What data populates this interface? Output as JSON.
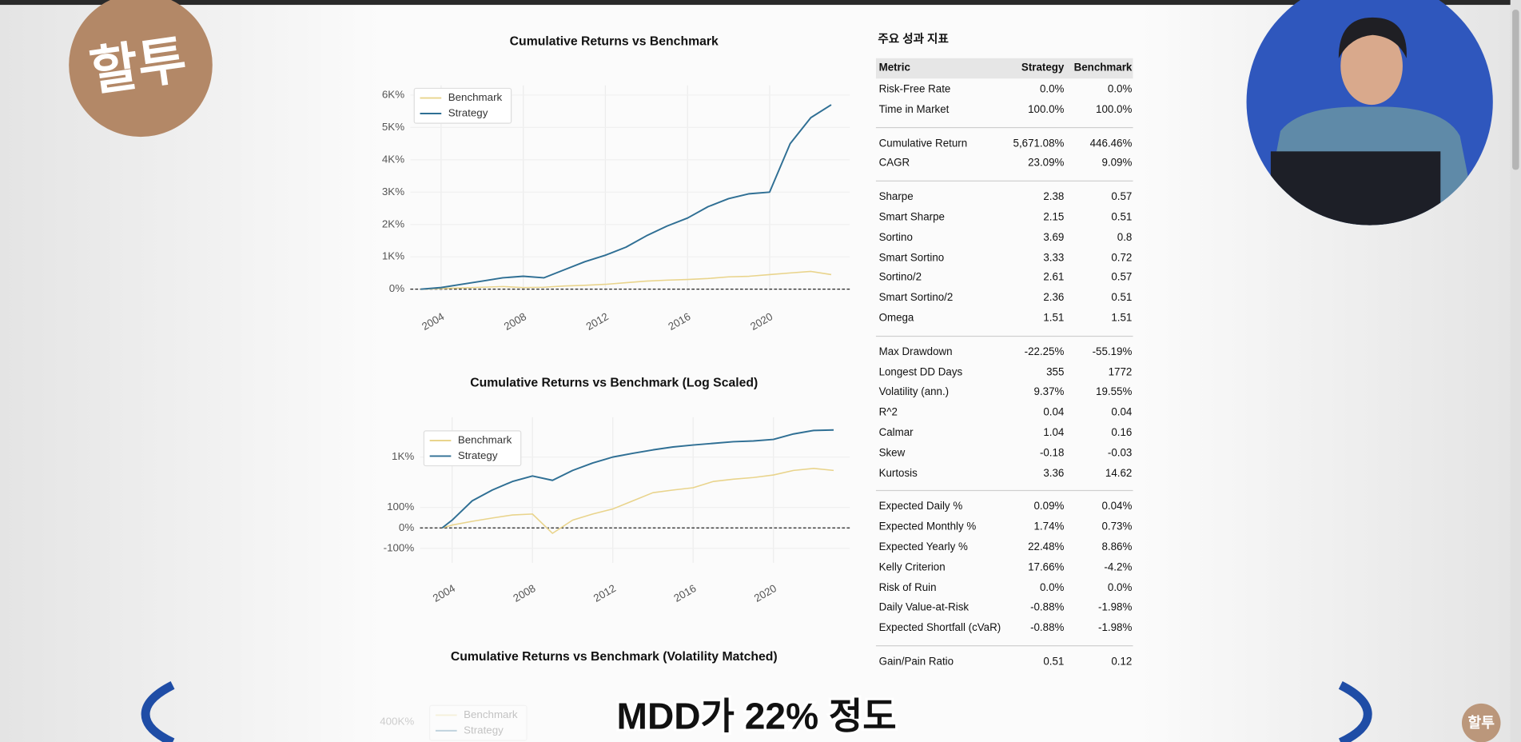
{
  "logo": "할투",
  "corner_logo": "할투",
  "caption": "MDD가 22% 정도",
  "charts": [
    {
      "type": "line",
      "title": "Cumulative Returns vs Benchmark",
      "x": [
        2003,
        2004,
        2005,
        2006,
        2007,
        2008,
        2009,
        2010,
        2011,
        2012,
        2013,
        2014,
        2015,
        2016,
        2017,
        2018,
        2019,
        2020,
        2021,
        2022,
        2023
      ],
      "series": [
        {
          "name": "Benchmark",
          "color": "#e9d48c",
          "values": [
            0,
            20,
            40,
            60,
            80,
            50,
            60,
            100,
            120,
            150,
            200,
            250,
            280,
            300,
            330,
            380,
            400,
            450,
            500,
            550,
            450
          ]
        },
        {
          "name": "Strategy",
          "color": "#2f6f94",
          "values": [
            0,
            50,
            150,
            250,
            350,
            400,
            350,
            600,
            850,
            1050,
            1300,
            1650,
            1950,
            2200,
            2550,
            2800,
            2950,
            3000,
            4500,
            5300,
            5700
          ]
        }
      ],
      "xlim": [
        2002.5,
        2023.9
      ],
      "xticks": [
        2004,
        2008,
        2012,
        2016,
        2020
      ],
      "ylim": [
        -60,
        6300
      ],
      "yticks": [
        {
          "value": 0,
          "label": "0%"
        },
        {
          "value": 1000,
          "label": "1K%"
        },
        {
          "value": 2000,
          "label": "2K%"
        },
        {
          "value": 3000,
          "label": "3K%"
        },
        {
          "value": 4000,
          "label": "4K%"
        },
        {
          "value": 5000,
          "label": "5K%"
        },
        {
          "value": 6000,
          "label": "6K%"
        }
      ],
      "grid": true,
      "legend": "upper left"
    },
    {
      "type": "line",
      "title": "Cumulative Returns vs Benchmark (Log Scaled)",
      "yscale": "symlog",
      "x": [
        2003.5,
        2004,
        2005,
        2006,
        2007,
        2008,
        2009,
        2010,
        2011,
        2012,
        2013,
        2014,
        2015,
        2016,
        2017,
        2018,
        2019,
        2020,
        2021,
        2022,
        2023
      ],
      "series": [
        {
          "name": "Benchmark",
          "color": "#e9d48c",
          "values": [
            0,
            10,
            25,
            40,
            55,
            60,
            -20,
            30,
            60,
            90,
            150,
            230,
            260,
            290,
            380,
            420,
            450,
            500,
            600,
            650,
            600
          ]
        },
        {
          "name": "Strategy",
          "color": "#2f6f94",
          "values": [
            0,
            30,
            150,
            260,
            380,
            480,
            400,
            600,
            800,
            1000,
            1150,
            1300,
            1450,
            1550,
            1650,
            1750,
            1800,
            1900,
            2300,
            2600,
            2650
          ]
        }
      ],
      "xlim": [
        2002.4,
        2023.8
      ],
      "xticks": [
        2004,
        2008,
        2012,
        2016,
        2020
      ],
      "ylim": [
        -226,
        4127
      ],
      "yticks": [
        {
          "value": -100,
          "label": "-100%"
        },
        {
          "value": 0,
          "label": "0%"
        },
        {
          "value": 100,
          "label": "100%"
        },
        {
          "value": 1000,
          "label": "1K%"
        }
      ],
      "grid": true,
      "legend": "upper left"
    },
    {
      "type": "line",
      "title": "Cumulative Returns vs Benchmark (Volatility Matched)",
      "series": [
        {
          "name": "Benchmark",
          "color": "#e9d48c"
        },
        {
          "name": "Strategy",
          "color": "#2f6f94"
        }
      ],
      "yticks": [
        {
          "value": 400000,
          "label": "400K%"
        }
      ]
    }
  ],
  "metrics": {
    "title": "주요 성과 지표",
    "header": [
      "Metric",
      "Strategy",
      "Benchmark"
    ],
    "sections": [
      [
        [
          "Risk-Free Rate",
          "0.0%",
          "0.0%"
        ],
        [
          "Time in Market",
          "100.0%",
          "100.0%"
        ]
      ],
      [
        [
          "Cumulative Return",
          "5,671.08%",
          "446.46%"
        ],
        [
          "CAGR",
          "23.09%",
          "9.09%"
        ]
      ],
      [
        [
          "Sharpe",
          "2.38",
          "0.57"
        ],
        [
          "Smart Sharpe",
          "2.15",
          "0.51"
        ],
        [
          "Sortino",
          "3.69",
          "0.8"
        ],
        [
          "Smart Sortino",
          "3.33",
          "0.72"
        ],
        [
          "Sortino/2",
          "2.61",
          "0.57"
        ],
        [
          "Smart Sortino/2",
          "2.36",
          "0.51"
        ],
        [
          "Omega",
          "1.51",
          "1.51"
        ]
      ],
      [
        [
          "Max Drawdown",
          "-22.25%",
          "-55.19%"
        ],
        [
          "Longest DD Days",
          "355",
          "1772"
        ],
        [
          "Volatility (ann.)",
          "9.37%",
          "19.55%"
        ],
        [
          "R^2",
          "0.04",
          "0.04"
        ],
        [
          "Calmar",
          "1.04",
          "0.16"
        ],
        [
          "Skew",
          "-0.18",
          "-0.03"
        ],
        [
          "Kurtosis",
          "3.36",
          "14.62"
        ]
      ],
      [
        [
          "Expected Daily %",
          "0.09%",
          "0.04%"
        ],
        [
          "Expected Monthly %",
          "1.74%",
          "0.73%"
        ],
        [
          "Expected Yearly %",
          "22.48%",
          "8.86%"
        ],
        [
          "Kelly Criterion",
          "17.66%",
          "-4.2%"
        ],
        [
          "Risk of Ruin",
          "0.0%",
          "0.0%"
        ],
        [
          "Daily Value-at-Risk",
          "-0.88%",
          "-1.98%"
        ],
        [
          "Expected Shortfall (cVaR)",
          "-0.88%",
          "-1.98%"
        ]
      ],
      [
        [
          "Gain/Pain Ratio",
          "0.51",
          "0.12"
        ]
      ]
    ]
  }
}
